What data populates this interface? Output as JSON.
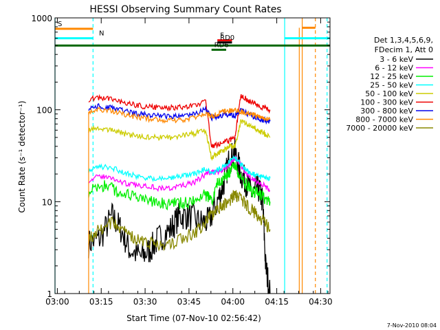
{
  "chart_data": {
    "type": "line",
    "title": "HESSI Observing Summary Count Rates",
    "xlabel": "Start Time (07-Nov-10 02:56:42)",
    "ylabel": "Count Rate (s⁻¹ detector⁻¹)",
    "yscale": "log",
    "ylim": [
      1,
      1000
    ],
    "xlim_minutes": [
      2.5,
      96.5
    ],
    "x_ticks": [
      {
        "m": 3.3,
        "label": "03:00"
      },
      {
        "m": 18.3,
        "label": "03:15"
      },
      {
        "m": 33.3,
        "label": "03:30"
      },
      {
        "m": 48.3,
        "label": "03:45"
      },
      {
        "m": 63.3,
        "label": "04:00"
      },
      {
        "m": 78.3,
        "label": "04:15"
      },
      {
        "m": 93.3,
        "label": "04:30"
      }
    ],
    "y_ticks": [
      {
        "v": 1,
        "label": "1"
      },
      {
        "v": 10,
        "label": "10"
      },
      {
        "v": 100,
        "label": "100"
      },
      {
        "v": 1000,
        "label": "1000"
      }
    ],
    "legend": {
      "header": [
        "Det 1,3,4,5,6,9,",
        "FDecim 1, Att 0"
      ],
      "placement": "right",
      "entries": [
        {
          "label": "3 - 6 keV",
          "color": "#000000"
        },
        {
          "label": "6 - 12 keV",
          "color": "#ff00ff"
        },
        {
          "label": "12 - 25 keV",
          "color": "#00ee00"
        },
        {
          "label": "25 - 50 keV",
          "color": "#00ffff"
        },
        {
          "label": "50 - 100 keV",
          "color": "#cccc00"
        },
        {
          "label": "100 - 300 keV",
          "color": "#ee0000"
        },
        {
          "label": "300 - 800 keV",
          "color": "#0000ee"
        },
        {
          "label": "800 - 7000 keV",
          "color": "#ff8800"
        },
        {
          "label": "7000 - 20000 keV",
          "color": "#888800"
        }
      ]
    },
    "series": [
      {
        "name": "3 - 6 keV",
        "color": "#000000",
        "x": [
          14,
          18,
          22,
          25,
          28,
          32,
          35,
          38,
          42,
          45,
          48,
          52,
          55,
          58,
          60,
          62,
          64,
          66,
          68,
          70,
          72,
          73.5,
          74.5,
          76
        ],
        "y": [
          3.5,
          4,
          7,
          5,
          3,
          2.5,
          3,
          4,
          5,
          7,
          7,
          6,
          6,
          10,
          15,
          28,
          35,
          20,
          16,
          12,
          14,
          10,
          2,
          1
        ]
      },
      {
        "name": "6 - 12 keV",
        "color": "#ff00ff",
        "x": [
          14,
          18,
          22,
          26,
          30,
          34,
          38,
          42,
          46,
          50,
          54,
          56,
          58,
          60,
          62,
          64,
          66,
          68,
          70,
          72,
          74,
          76
        ],
        "y": [
          17,
          19,
          18,
          16,
          15,
          15,
          14,
          14,
          15,
          16,
          20,
          21,
          21,
          22,
          25,
          30,
          25,
          20,
          18,
          16,
          15,
          13
        ]
      },
      {
        "name": "12 - 25 keV",
        "color": "#00ee00",
        "x": [
          14,
          18,
          22,
          26,
          30,
          34,
          38,
          42,
          46,
          50,
          54,
          56,
          58,
          60,
          62,
          64,
          66,
          68,
          70,
          72,
          74,
          76
        ],
        "y": [
          13,
          15,
          14,
          12,
          11,
          10,
          10,
          9.5,
          9.5,
          10,
          12,
          10,
          16,
          18,
          20,
          25,
          18,
          15,
          13,
          12,
          11,
          10
        ]
      },
      {
        "name": "25 - 50 keV",
        "color": "#00ffff",
        "x": [
          14,
          18,
          22,
          26,
          30,
          34,
          38,
          42,
          46,
          50,
          54,
          56,
          58,
          60,
          62,
          64,
          66,
          68,
          70,
          72,
          74,
          76
        ],
        "y": [
          22,
          24,
          23,
          21,
          19,
          18,
          18,
          18,
          19,
          20,
          23,
          20,
          22,
          24,
          27,
          30,
          26,
          22,
          20,
          19,
          18,
          18
        ]
      },
      {
        "name": "50 - 100 keV",
        "color": "#cccc00",
        "x": [
          14,
          18,
          22,
          26,
          30,
          34,
          38,
          42,
          46,
          50,
          54,
          56,
          58,
          60,
          62,
          64,
          66,
          68,
          70,
          72,
          74,
          76
        ],
        "y": [
          60,
          63,
          60,
          55,
          52,
          50,
          50,
          50,
          52,
          55,
          60,
          30,
          33,
          36,
          40,
          40,
          75,
          70,
          65,
          60,
          55,
          50
        ]
      },
      {
        "name": "100 - 300 keV",
        "color": "#ee0000",
        "x": [
          14,
          18,
          22,
          26,
          30,
          34,
          38,
          42,
          46,
          50,
          54,
          56,
          58,
          60,
          62,
          64,
          66,
          68,
          70,
          72,
          74,
          76
        ],
        "y": [
          130,
          135,
          130,
          120,
          112,
          108,
          106,
          105,
          106,
          110,
          125,
          40,
          42,
          44,
          46,
          50,
          145,
          130,
          120,
          110,
          105,
          100
        ]
      },
      {
        "name": "300 - 800 keV",
        "color": "#0000ee",
        "x": [
          14,
          18,
          22,
          26,
          30,
          34,
          38,
          42,
          46,
          50,
          54,
          56,
          58,
          60,
          62,
          64,
          66,
          68,
          70,
          72,
          74,
          76
        ],
        "y": [
          105,
          110,
          105,
          98,
          92,
          88,
          86,
          85,
          86,
          90,
          100,
          82,
          85,
          88,
          88,
          86,
          100,
          92,
          85,
          80,
          77,
          75
        ]
      },
      {
        "name": "800 - 7000 keV",
        "color": "#ff8800",
        "x": [
          14,
          18,
          22,
          26,
          30,
          34,
          38,
          42,
          46,
          50,
          54,
          56,
          58,
          60,
          62,
          64,
          66,
          68,
          70,
          72,
          74,
          76
        ],
        "y": [
          95,
          100,
          96,
          90,
          84,
          80,
          78,
          77,
          78,
          82,
          90,
          85,
          90,
          95,
          98,
          98,
          95,
          92,
          88,
          84,
          81,
          78
        ]
      },
      {
        "name": "7000 - 20000 keV",
        "color": "#888800",
        "x": [
          14,
          18,
          22,
          26,
          30,
          34,
          38,
          42,
          46,
          50,
          54,
          56,
          58,
          60,
          62,
          64,
          66,
          68,
          70,
          72,
          74,
          76
        ],
        "y": [
          4,
          5,
          6,
          5,
          4,
          3.5,
          3.5,
          3.5,
          4,
          4.5,
          6,
          7,
          8,
          9,
          10,
          12,
          11,
          9,
          8,
          7,
          6,
          5
        ]
      }
    ],
    "event_bars": [
      {
        "label": "S",
        "color": "#ff8800",
        "x": [
          2.5,
          15.5
        ],
        "value": 760
      },
      {
        "label": "N",
        "color": "#00ffff",
        "x": [
          2.5,
          15.5
        ],
        "value": 600
      },
      {
        "label": "",
        "color": "#00ffff",
        "x": [
          81,
          96.5
        ],
        "value": 600
      },
      {
        "label": "",
        "color": "#ff8800",
        "x": [
          87,
          91.5
        ],
        "value": 780
      },
      {
        "label": "F",
        "color": "#ee0000",
        "x": [
          58,
          63
        ],
        "value": 570
      },
      {
        "label": "RD0",
        "color": "#000000",
        "x": [
          58,
          63
        ],
        "value": 540
      },
      {
        "label": "",
        "color": "#006600",
        "x": [
          2.5,
          96.5
        ],
        "value": 500
      },
      {
        "label": "RD6",
        "color": "#006600",
        "x": [
          56,
          61
        ],
        "value": 450
      }
    ],
    "vertical_markers": [
      {
        "m": 2.5,
        "color": "#00ffff",
        "style": "solid"
      },
      {
        "m": 15.5,
        "color": "#00ffff",
        "style": "dashed"
      },
      {
        "m": 81,
        "color": "#00ffff",
        "style": "solid"
      },
      {
        "m": 95.5,
        "color": "#00ffff",
        "style": "dashed"
      },
      {
        "m": 87,
        "color": "#ff8800",
        "style": "solid"
      },
      {
        "m": 91.5,
        "color": "#ff8800",
        "style": "dashed"
      }
    ],
    "footer": "7-Nov-2010 08:04"
  }
}
